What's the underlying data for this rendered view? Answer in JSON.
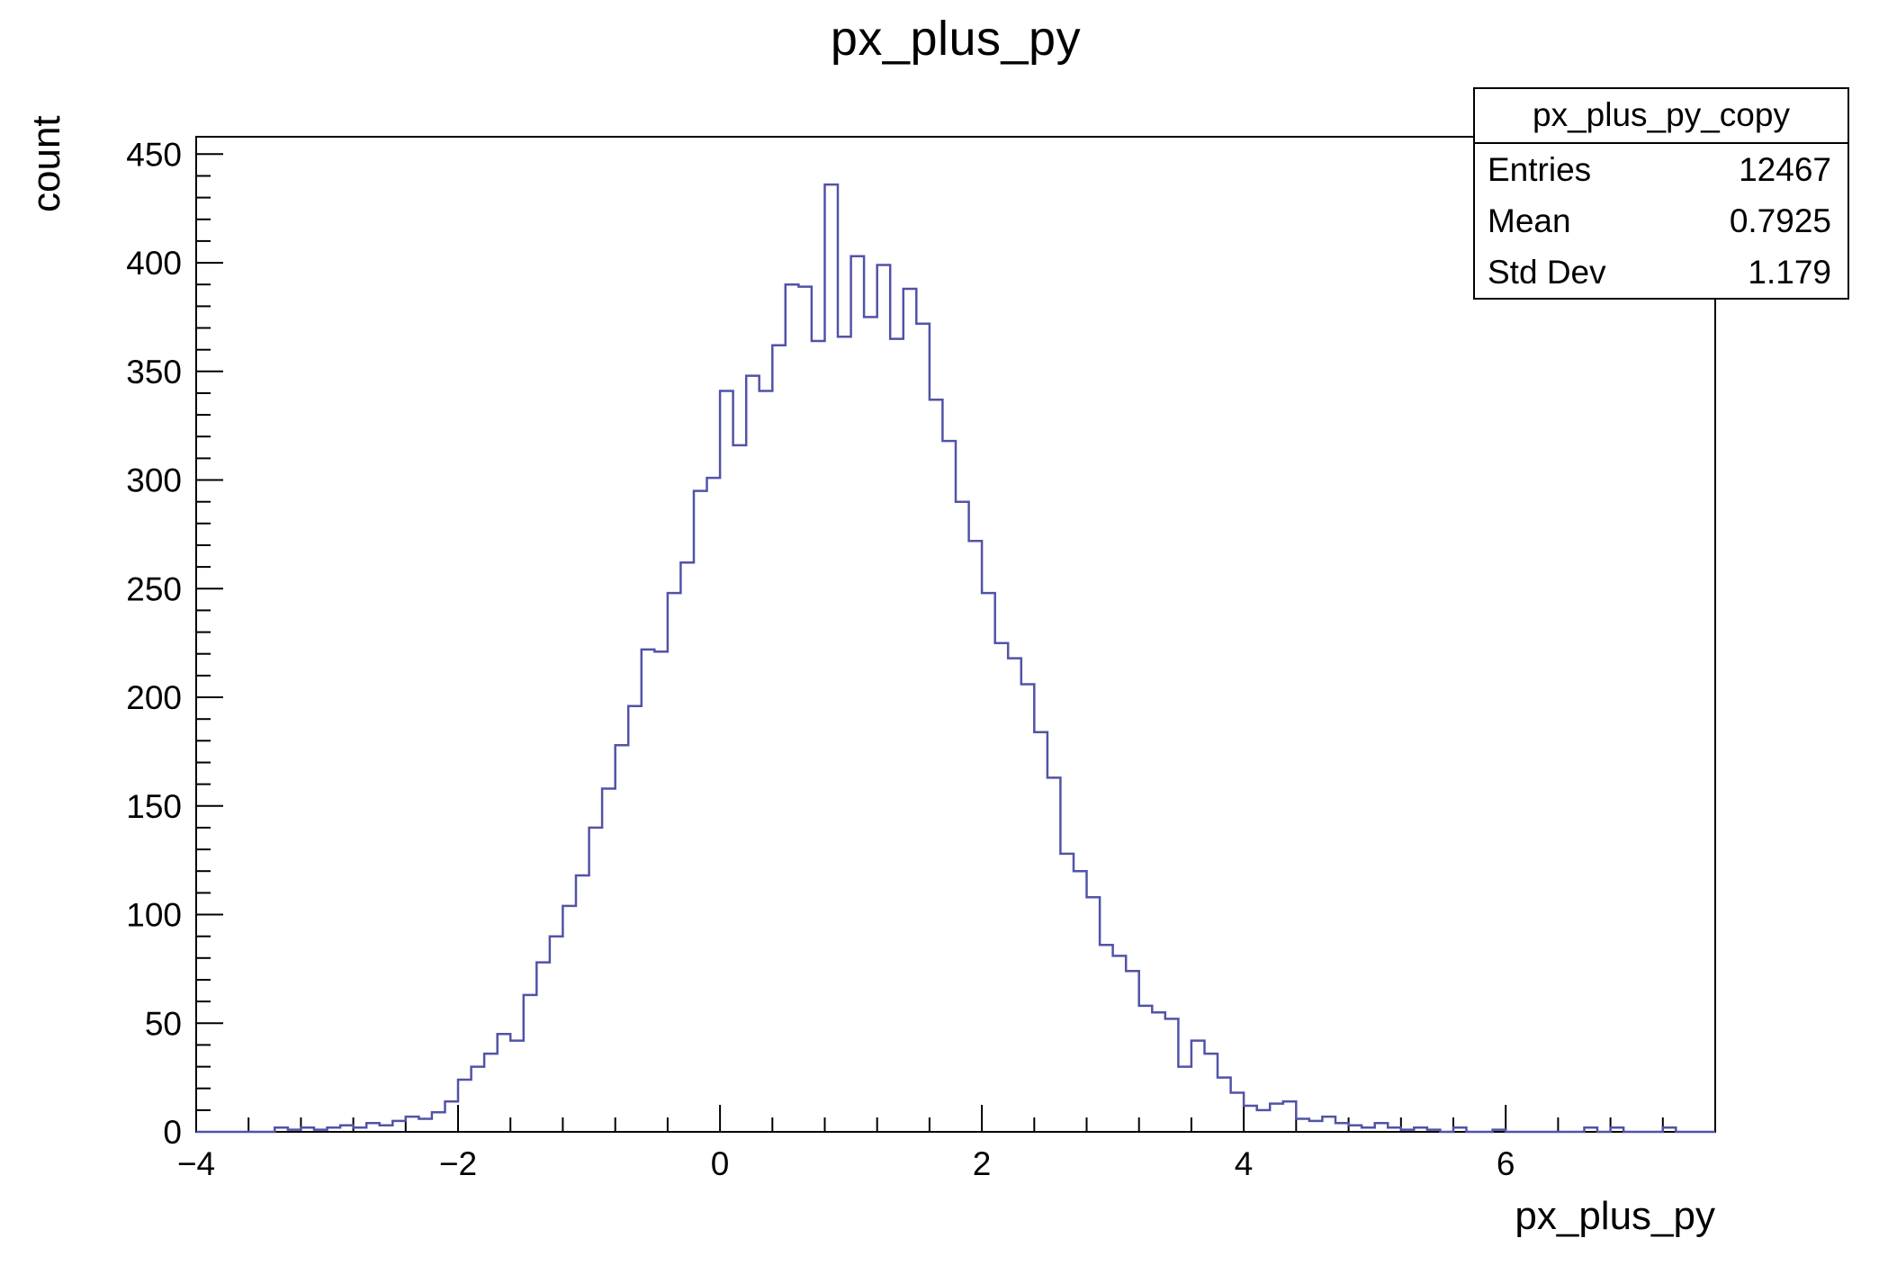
{
  "page": {
    "background": "#ffffff",
    "frame_color": "#000000"
  },
  "title": "px_plus_py",
  "stats_box": {
    "name": "px_plus_py_copy",
    "rows": [
      {
        "label": "Entries",
        "value": "12467"
      },
      {
        "label": "Mean",
        "value": "0.7925"
      },
      {
        "label": "Std Dev",
        "value": "1.179"
      }
    ]
  },
  "axes": {
    "x": {
      "label": "px_plus_py",
      "min": -4,
      "max": 7.6,
      "minor_step": 0.4,
      "major_ticks": [
        {
          "value": -4,
          "label": "−4"
        },
        {
          "value": -2,
          "label": "−2"
        },
        {
          "value": 0,
          "label": "0"
        },
        {
          "value": 2,
          "label": "2"
        },
        {
          "value": 4,
          "label": "4"
        },
        {
          "value": 6,
          "label": "6"
        }
      ]
    },
    "y": {
      "label": "count",
      "min": 0,
      "max": 458,
      "minor_step": 10,
      "major_ticks": [
        {
          "value": 0,
          "label": "0"
        },
        {
          "value": 50,
          "label": "50"
        },
        {
          "value": 100,
          "label": "100"
        },
        {
          "value": 150,
          "label": "150"
        },
        {
          "value": 200,
          "label": "200"
        },
        {
          "value": 250,
          "label": "250"
        },
        {
          "value": 300,
          "label": "300"
        },
        {
          "value": 350,
          "label": "350"
        },
        {
          "value": 400,
          "label": "400"
        },
        {
          "value": 450,
          "label": "450"
        }
      ]
    }
  },
  "chart_data": {
    "type": "histogram",
    "draw_style": "step-outline",
    "title": "px_plus_py",
    "xlabel": "px_plus_py",
    "ylabel": "count",
    "xlim": [
      -4,
      7.6
    ],
    "ylim": [
      0,
      458
    ],
    "grid": false,
    "legend": "none",
    "stats": {
      "name": "px_plus_py_copy",
      "entries": 12467,
      "mean": 0.7925,
      "std_dev": 1.179
    },
    "line_color": "#5153a7",
    "bin_start": -4.0,
    "bin_width": 0.1,
    "counts": [
      0,
      0,
      0,
      0,
      0,
      0,
      2,
      1,
      2,
      1,
      2,
      3,
      2,
      4,
      3,
      5,
      7,
      6,
      9,
      14,
      24,
      30,
      36,
      45,
      42,
      63,
      78,
      90,
      104,
      118,
      140,
      158,
      178,
      196,
      222,
      221,
      248,
      262,
      295,
      301,
      341,
      316,
      348,
      341,
      362,
      390,
      389,
      364,
      436,
      366,
      403,
      375,
      399,
      365,
      388,
      372,
      337,
      318,
      290,
      272,
      248,
      225,
      218,
      206,
      184,
      163,
      128,
      120,
      108,
      86,
      81,
      74,
      58,
      55,
      52,
      30,
      42,
      36,
      25,
      18,
      12,
      10,
      13,
      14,
      6,
      5,
      7,
      4,
      3,
      2,
      4,
      2,
      1,
      2,
      1,
      0,
      2,
      0,
      0,
      1,
      0,
      0,
      0,
      0,
      0,
      0,
      2,
      0,
      2,
      0,
      0,
      0,
      2,
      0,
      0,
      0
    ]
  }
}
